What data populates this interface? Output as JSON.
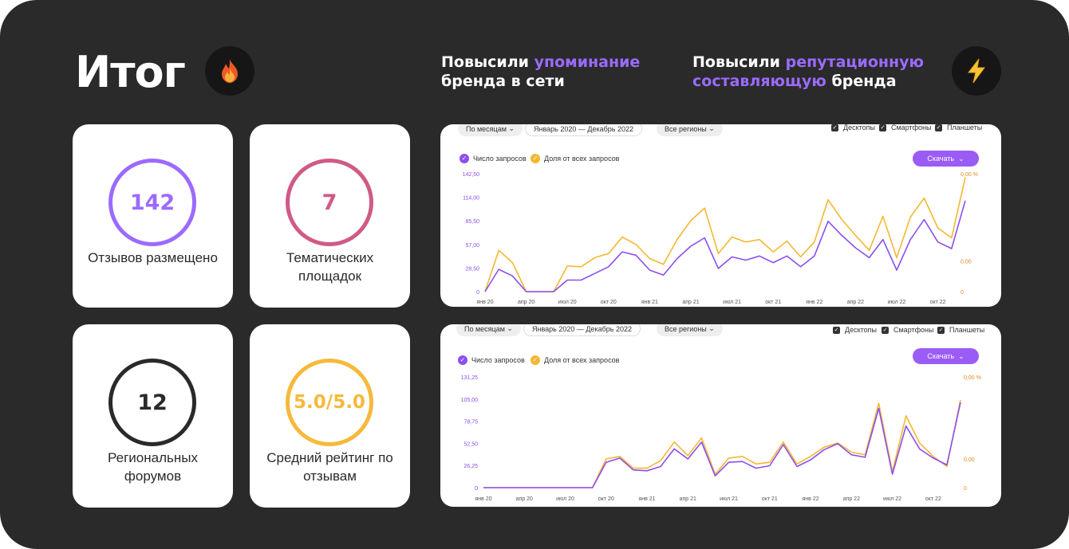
{
  "title": "Итог",
  "icons": {
    "fire": "fire-icon",
    "lightning": "lightning-icon"
  },
  "headline_left": {
    "prefix": "Повысили ",
    "highlight": "упоминание",
    "rest": "бренда в сети"
  },
  "headline_right": {
    "prefix": "Повысили ",
    "highlight": "репутационную",
    "highlight2": "составляющую",
    "rest": " бренда"
  },
  "stats": [
    {
      "value": "142",
      "label": "Отзывов размещено",
      "color": "#9b6bff"
    },
    {
      "value": "7",
      "label": "Тематических площадок",
      "color": "#d05a86"
    },
    {
      "value": "12",
      "label": "Региональных форумов",
      "color": "#2a2a2a"
    },
    {
      "value": "5.0/5.0",
      "label": "Средний рейтинг по отзывам",
      "color": "#f6b93b"
    }
  ],
  "colors": {
    "purple": "#8b4ff0",
    "orange": "#f5b731",
    "accent": "#9b5cf6"
  },
  "chart_data": [
    {
      "type": "line",
      "controls": {
        "period": "По месяцам",
        "range": "Январь 2020 — Декабрь 2022",
        "region": "Все регионы",
        "devices": [
          "Десктопы",
          "Смартфоны",
          "Планшеты"
        ],
        "download": "Скачать"
      },
      "legend": [
        "Число запросов",
        "Доля от всех запросов"
      ],
      "x_ticks": [
        "янв 20",
        "апр 20",
        "июл 20",
        "окт 20",
        "янв 21",
        "апр 21",
        "июл 21",
        "окт 21",
        "янв 22",
        "апр 22",
        "июл 22",
        "окт 22"
      ],
      "y_ticks": [
        "0",
        "28,50",
        "57,00",
        "85,50",
        "114,00",
        "142,50"
      ],
      "y2_ticks": [
        "0",
        "0,00",
        "0,00 %"
      ],
      "ylim": [
        0,
        142.5
      ],
      "series": [
        {
          "name": "Число запросов",
          "color": "#8b4ff0",
          "values": [
            0,
            27,
            19,
            0,
            0,
            0,
            14,
            14,
            22,
            30,
            48,
            44,
            26,
            20,
            40,
            55,
            65,
            28,
            42,
            38,
            43,
            35,
            43,
            30,
            43,
            85,
            68,
            53,
            41,
            63,
            26,
            63,
            87,
            60,
            52,
            110
          ]
        },
        {
          "name": "Доля от всех запросов",
          "color": "#f5b731",
          "values": [
            0,
            50,
            35,
            0,
            0,
            0,
            31,
            30,
            41,
            46,
            66,
            57,
            40,
            33,
            63,
            86,
            101,
            46,
            66,
            60,
            63,
            48,
            61,
            42,
            60,
            111,
            87,
            68,
            50,
            91,
            41,
            90,
            113,
            77,
            65,
            138
          ]
        }
      ]
    },
    {
      "type": "line",
      "controls": {
        "period": "По месяцам",
        "range": "Январь 2020 — Декабрь 2022",
        "region": "Все регионы",
        "devices": [
          "Десктопы",
          "Смартфоны",
          "Планшеты"
        ],
        "download": "Скачать"
      },
      "legend": [
        "Число запросов",
        "Доля от всех запросов"
      ],
      "x_ticks": [
        "янв 20",
        "апр 20",
        "июл 20",
        "окт 20",
        "янв 21",
        "апр 21",
        "июл 21",
        "окт 21",
        "янв 22",
        "апр 22",
        "июл 22",
        "окт 22"
      ],
      "y_ticks": [
        "0",
        "26,25",
        "52,50",
        "78,75",
        "105,00",
        "131,25"
      ],
      "y2_ticks": [
        "0",
        "0,00",
        "0,00 %"
      ],
      "ylim": [
        0,
        131.25
      ],
      "series": [
        {
          "name": "Число запросов",
          "color": "#8b4ff0",
          "values": [
            0,
            0,
            0,
            0,
            0,
            0,
            0,
            0,
            0,
            30,
            35,
            21,
            20,
            25,
            46,
            34,
            54,
            14,
            30,
            31,
            23,
            26,
            51,
            25,
            33,
            45,
            52,
            39,
            36,
            94,
            16,
            73,
            46,
            35,
            27,
            101
          ]
        },
        {
          "name": "Доля от всех запросов",
          "color": "#f5b731",
          "values": [
            0,
            0,
            0,
            0,
            0,
            0,
            0,
            0,
            0,
            34,
            37,
            23,
            23,
            32,
            54,
            38,
            59,
            16,
            35,
            37,
            28,
            30,
            54,
            28,
            37,
            48,
            53,
            42,
            39,
            100,
            19,
            85,
            53,
            37,
            25,
            104
          ]
        }
      ]
    }
  ]
}
